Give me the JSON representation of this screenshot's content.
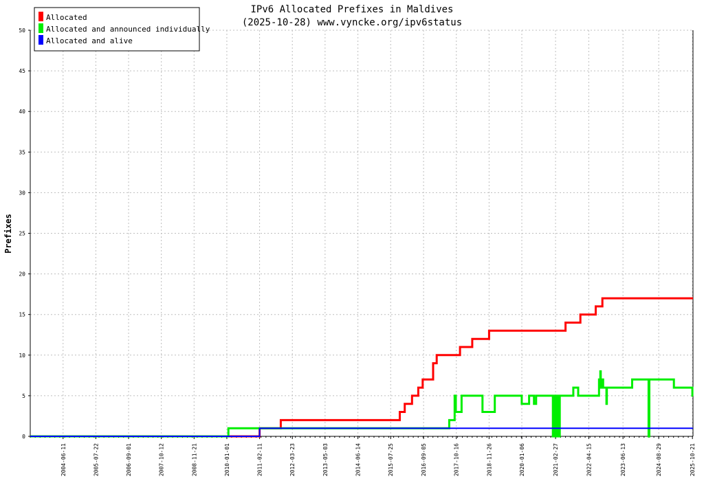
{
  "chart_data": {
    "type": "line",
    "title": "IPv6 Allocated Prefixes in Maldives",
    "subtitle": "(2025-10-28) www.vyncke.org/ipv6status",
    "ylabel": "Prefixes",
    "xlabel": "",
    "ylim": [
      0,
      50
    ],
    "yticks": [
      0,
      5,
      10,
      15,
      20,
      25,
      30,
      35,
      40,
      45,
      50
    ],
    "xlim": [
      "2003-05-01",
      "2025-10-28"
    ],
    "xticks": [
      "2004-06-11",
      "2005-07-22",
      "2006-09-01",
      "2007-10-12",
      "2008-11-21",
      "2010-01-01",
      "2011-02-11",
      "2012-03-23",
      "2013-05-03",
      "2014-06-14",
      "2015-07-25",
      "2016-09-05",
      "2017-10-16",
      "2018-11-26",
      "2020-01-06",
      "2021-02-27",
      "2022-04-15",
      "2023-06-13",
      "2024-08-29",
      "2025-10-21"
    ],
    "grid": true,
    "legend_position": "top-left",
    "series": [
      {
        "name": "Allocated",
        "color": "#ff0000",
        "points": [
          [
            "2003-05-01",
            0
          ],
          [
            "2011-02-11",
            1
          ],
          [
            "2011-11-01",
            2
          ],
          [
            "2015-11-15",
            3
          ],
          [
            "2016-01-15",
            4
          ],
          [
            "2016-04-15",
            5
          ],
          [
            "2016-07-01",
            6
          ],
          [
            "2016-08-25",
            7
          ],
          [
            "2017-01-01",
            9
          ],
          [
            "2017-02-15",
            10
          ],
          [
            "2017-12-01",
            11
          ],
          [
            "2018-05-01",
            12
          ],
          [
            "2018-11-26",
            13
          ],
          [
            "2021-07-01",
            14
          ],
          [
            "2022-01-01",
            15
          ],
          [
            "2022-07-10",
            16
          ],
          [
            "2022-10-01",
            17
          ],
          [
            "2025-10-28",
            17
          ]
        ]
      },
      {
        "name": "Allocated and announced individually",
        "color": "#00ee00",
        "points": [
          [
            "2003-05-01",
            0
          ],
          [
            "2010-01-20",
            1
          ],
          [
            "2017-07-15",
            1
          ],
          [
            "2017-07-20",
            2
          ],
          [
            "2017-09-20",
            2
          ],
          [
            "2017-09-25",
            5
          ],
          [
            "2017-10-10",
            3
          ],
          [
            "2017-12-15",
            3
          ],
          [
            "2017-12-20",
            5
          ],
          [
            "2018-09-01",
            5
          ],
          [
            "2018-09-05",
            3
          ],
          [
            "2019-02-01",
            3
          ],
          [
            "2019-02-05",
            5
          ],
          [
            "2020-01-01",
            5
          ],
          [
            "2020-01-05",
            4
          ],
          [
            "2020-04-01",
            4
          ],
          [
            "2020-04-05",
            5
          ],
          [
            "2020-06-01",
            5
          ],
          [
            "2020-06-05",
            4
          ],
          [
            "2020-07-01",
            5
          ],
          [
            "2021-01-20",
            5
          ],
          [
            "2021-01-25",
            0
          ],
          [
            "2021-02-05",
            5
          ],
          [
            "2021-02-15",
            0
          ],
          [
            "2021-02-25",
            5
          ],
          [
            "2021-03-05",
            0
          ],
          [
            "2021-03-20",
            5
          ],
          [
            "2021-04-05",
            0
          ],
          [
            "2021-04-20",
            5
          ],
          [
            "2021-10-01",
            5
          ],
          [
            "2021-10-05",
            6
          ],
          [
            "2021-12-01",
            6
          ],
          [
            "2021-12-05",
            5
          ],
          [
            "2022-08-15",
            5
          ],
          [
            "2022-08-20",
            7
          ],
          [
            "2022-09-05",
            8
          ],
          [
            "2022-09-10",
            6
          ],
          [
            "2022-09-20",
            7
          ],
          [
            "2022-10-10",
            6
          ],
          [
            "2022-11-15",
            6
          ],
          [
            "2022-11-20",
            4
          ],
          [
            "2022-11-25",
            6
          ],
          [
            "2023-10-01",
            6
          ],
          [
            "2023-10-05",
            7
          ],
          [
            "2024-04-20",
            7
          ],
          [
            "2024-04-25",
            0
          ],
          [
            "2024-05-05",
            7
          ],
          [
            "2025-03-01",
            7
          ],
          [
            "2025-03-05",
            6
          ],
          [
            "2025-10-15",
            6
          ],
          [
            "2025-10-20",
            5
          ],
          [
            "2025-10-28",
            5
          ]
        ]
      },
      {
        "name": "Allocated and alive",
        "color": "#0000ff",
        "points": [
          [
            "2003-05-01",
            0
          ],
          [
            "2011-02-11",
            1
          ],
          [
            "2025-10-28",
            1
          ]
        ]
      }
    ]
  }
}
